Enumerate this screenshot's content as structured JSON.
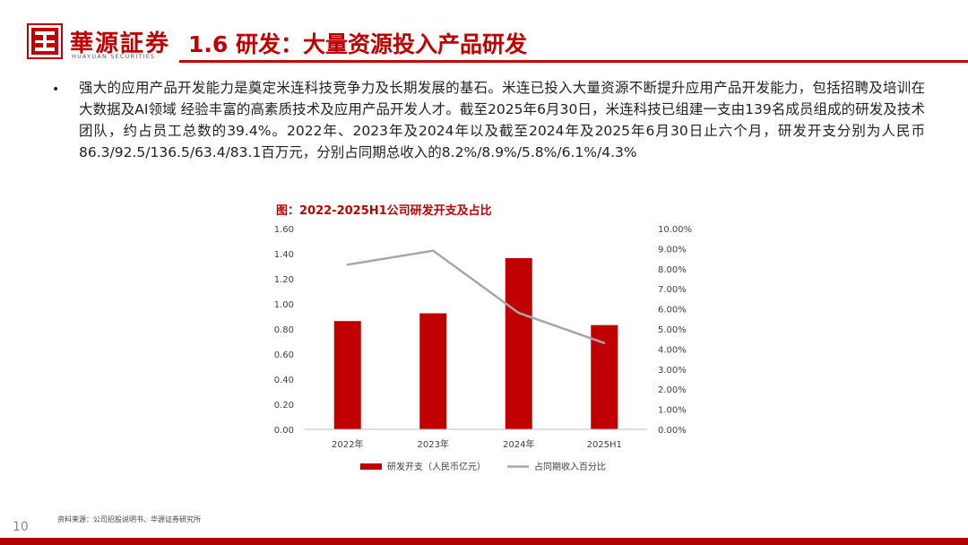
{
  "header": {
    "logo_cn": "華源証券",
    "logo_en": "HUAYUAN SECURITIES",
    "title": "1.6 研发：大量资源投入产品研发"
  },
  "bullet": "强大的应用产品开发能力是奠定米连科技竞争力及长期发展的基石。米连已投入大量资源不断提升应用产品开发能力，包括招聘及培训在大数据及AI领域 经验丰富的高素质技术及应用产品开发人才。截至2025年6月30日，米连科技已组建一支由139名成员组成的研发及技术团队，约占员工总数的39.4%。2022年、2023年及2024年以及截至2024年及2025年6月30日止六个月，研发开支分别为人民币86.3/92.5/136.5/63.4/83.1百万元，分别占同期总收入的8.2%/8.9%/5.8%/6.1%/4.3%",
  "chart_title": "图：2022-2025H1公司研发开支及占比",
  "chart_data": {
    "type": "bar",
    "categories": [
      "2022年",
      "2023年",
      "2024年",
      "2025H1"
    ],
    "series": [
      {
        "name": "研发开支（人民币亿元）",
        "type": "bar",
        "axis": "left",
        "color": "#c00000",
        "values": [
          0.863,
          0.925,
          1.365,
          0.831
        ]
      },
      {
        "name": "占同期收入百分比",
        "type": "line",
        "axis": "right",
        "color": "#a6a6a6",
        "values": [
          8.2,
          8.9,
          5.8,
          4.3
        ]
      }
    ],
    "y_left": {
      "min": 0,
      "max": 1.6,
      "ticks": [
        "0.00",
        "0.20",
        "0.40",
        "0.60",
        "0.80",
        "1.00",
        "1.20",
        "1.40",
        "1.60"
      ]
    },
    "y_right": {
      "min": 0,
      "max": 10,
      "ticks": [
        "0.00%",
        "1.00%",
        "2.00%",
        "3.00%",
        "4.00%",
        "5.00%",
        "6.00%",
        "7.00%",
        "8.00%",
        "9.00%",
        "10.00%"
      ]
    },
    "legend_position": "bottom",
    "grid": false
  },
  "source": "资料来源：公司招股说明书、华源证券研究所",
  "page_number": "10",
  "colors": {
    "accent": "#c00000",
    "line": "#a6a6a6"
  }
}
